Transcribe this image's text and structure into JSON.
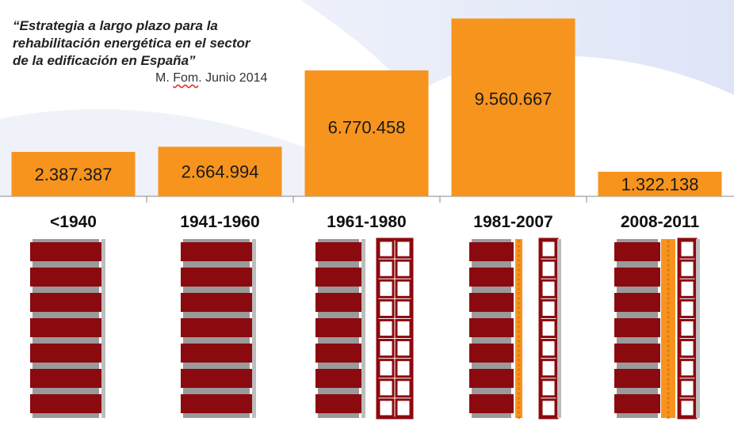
{
  "quote": {
    "line1": "“Estrategia a largo plazo para la",
    "line2": "rehabilitación energética en el sector",
    "line3": "de la edificación en España”",
    "source_pre": "M. ",
    "source_u": "Fom",
    "source_post": ". Junio 2014"
  },
  "colors": {
    "bar": "#F7941D",
    "brick": "#8B0A0F",
    "mortar": "#9a9a9a",
    "insulation": "#F7941D"
  },
  "chart_data": {
    "type": "bar",
    "categories": [
      "<1940",
      "1941-1960",
      "1961-1980",
      "1981-2007",
      "2008-2011"
    ],
    "values": [
      2387387,
      2664994,
      6770458,
      9560667,
      1322138
    ],
    "value_labels": [
      "2.387.387",
      "2.664.994",
      "6.770.458",
      "9.560.667",
      "1.322.138"
    ],
    "title": "",
    "xlabel": "",
    "ylabel": "",
    "ylim": [
      0,
      9960000
    ],
    "grid": false
  }
}
